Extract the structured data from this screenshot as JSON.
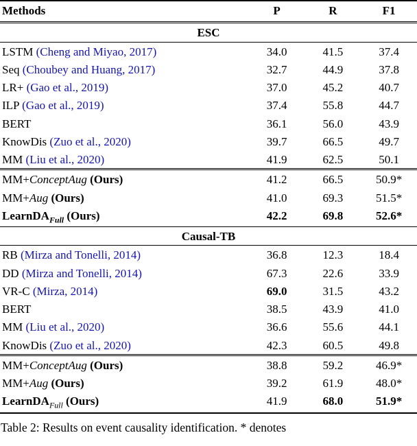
{
  "colors": {
    "citation": "#1515b0"
  },
  "header": {
    "methods": "Methods",
    "p": "P",
    "r": "R",
    "f1": "F1"
  },
  "sections": [
    {
      "title": "ESC",
      "rows": [
        {
          "name": "LSTM",
          "cite": "(Cheng and Miyao, 2017)",
          "p": "34.0",
          "r": "41.5",
          "f1": "37.4"
        },
        {
          "name": "Seq",
          "cite": "(Choubey and Huang, 2017)",
          "p": "32.7",
          "r": "44.9",
          "f1": "37.8"
        },
        {
          "name": "LR+",
          "cite": "(Gao et al., 2019)",
          "p": "37.0",
          "r": "45.2",
          "f1": "40.7"
        },
        {
          "name": "ILP",
          "cite": "(Gao et al., 2019)",
          "p": "37.4",
          "r": "55.8",
          "f1": "44.7"
        },
        {
          "name": "BERT",
          "p": "36.1",
          "r": "56.0",
          "f1": "43.9"
        },
        {
          "name": "KnowDis",
          "cite": "(Zuo et al., 2020)",
          "p": "39.7",
          "r": "66.5",
          "f1": "49.7"
        },
        {
          "name": "MM",
          "cite": "(Liu et al., 2020)",
          "p": "41.9",
          "r": "62.5",
          "f1": "50.1"
        },
        {
          "name": "MM+",
          "math": "ConceptAug",
          "ours": "(Ours)",
          "p": "41.2",
          "r": "66.5",
          "f1": "50.9*"
        },
        {
          "name": "MM+",
          "math": "Aug",
          "ours": "(Ours)",
          "p": "41.0",
          "r": "69.3",
          "f1": "51.5*"
        },
        {
          "name": "LearnDA",
          "sub": "Full",
          "ours": "(Ours)",
          "p": "42.2",
          "r": "69.8",
          "f1": "52.6*"
        }
      ]
    },
    {
      "title": "Causal-TB",
      "rows": [
        {
          "name": "RB",
          "cite": "(Mirza and Tonelli, 2014)",
          "p": "36.8",
          "r": "12.3",
          "f1": "18.4"
        },
        {
          "name": "DD",
          "cite": "(Mirza and Tonelli, 2014)",
          "p": "67.3",
          "r": "22.6",
          "f1": "33.9"
        },
        {
          "name": "VR-C",
          "cite": "(Mirza, 2014)",
          "p": "69.0",
          "r": "31.5",
          "f1": "43.2"
        },
        {
          "name": "BERT",
          "p": "38.5",
          "r": "43.9",
          "f1": "41.0"
        },
        {
          "name": "MM",
          "cite": "(Liu et al., 2020)",
          "p": "36.6",
          "r": "55.6",
          "f1": "44.1"
        },
        {
          "name": "KnowDis",
          "cite": "(Zuo et al., 2020)",
          "p": "42.3",
          "r": "60.5",
          "f1": "49.8"
        },
        {
          "name": "MM+",
          "math": "ConceptAug",
          "ours": "(Ours)",
          "p": "38.8",
          "r": "59.2",
          "f1": "46.9*"
        },
        {
          "name": "MM+",
          "math": "Aug",
          "ours": "(Ours)",
          "p": "39.2",
          "r": "61.9",
          "f1": "48.0*"
        },
        {
          "name": "LearnDA",
          "sub": "Full",
          "ours": "(Ours)",
          "p": "41.9",
          "r": "68.0",
          "f1": "51.9*"
        }
      ]
    }
  ],
  "caption": "Table 2: Results on event causality identification. * denotes"
}
